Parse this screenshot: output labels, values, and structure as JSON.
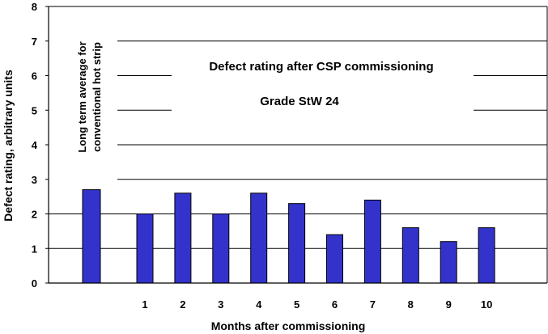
{
  "chart_data": {
    "type": "bar",
    "title": "Defect rating after CSP commissioning",
    "subtitle": "Grade StW 24",
    "xlabel": "Months after commissioning",
    "ylabel": "Defect rating, arbitrary units",
    "ylim": [
      0,
      8
    ],
    "yticks": [
      "0",
      "1",
      "2",
      "3",
      "4",
      "5",
      "6",
      "7",
      "8"
    ],
    "grid": true,
    "bar_color": "#3333cc",
    "reference": {
      "line1": "Long term average for",
      "line2": "conventional hot strip",
      "value": 2.7
    },
    "categories": [
      "1",
      "2",
      "3",
      "4",
      "5",
      "6",
      "7",
      "8",
      "9",
      "10"
    ],
    "values": [
      2.0,
      2.6,
      2.0,
      2.6,
      2.3,
      1.4,
      2.4,
      1.6,
      1.2,
      1.6
    ]
  }
}
